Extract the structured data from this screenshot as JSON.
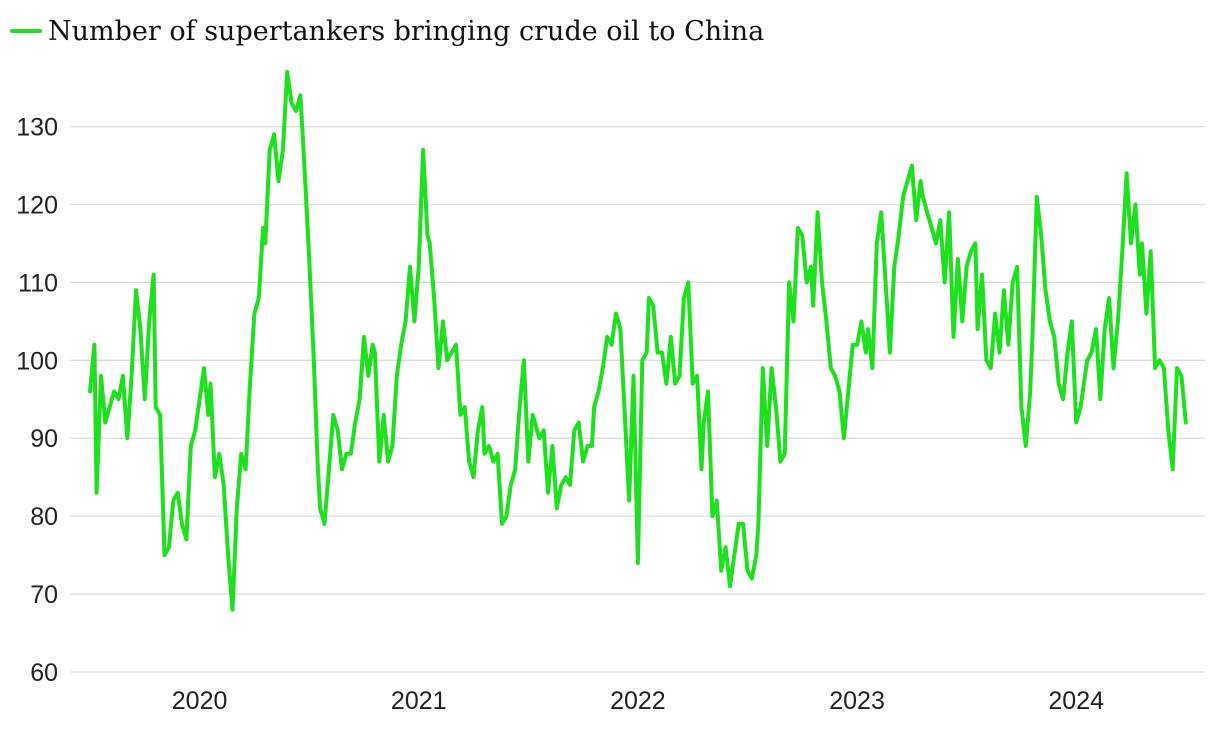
{
  "chart_data": {
    "type": "line",
    "title": "",
    "xlabel": "",
    "ylabel": "",
    "ylim": [
      60,
      137
    ],
    "yticks": [
      60,
      70,
      80,
      90,
      100,
      110,
      120,
      130
    ],
    "xticks": [
      "2020",
      "2021",
      "2022",
      "2023",
      "2024"
    ],
    "xlim": [
      2019.58,
      2024.59
    ],
    "grid": true,
    "legend": "top-left",
    "series": [
      {
        "name": "Number of supertankers bringing crude oil to China",
        "color": "#1ee01e",
        "x": [
          2019.58,
          2019.6,
          2019.61,
          2019.63,
          2019.65,
          2019.67,
          2019.69,
          2019.71,
          2019.73,
          2019.75,
          2019.77,
          2019.79,
          2019.81,
          2019.83,
          2019.85,
          2019.87,
          2019.88,
          2019.9,
          2019.92,
          2019.94,
          2019.96,
          2019.98,
          2020.0,
          2020.02,
          2020.04,
          2020.06,
          2020.08,
          2020.1,
          2020.12,
          2020.13,
          2020.15,
          2020.17,
          2020.19,
          2020.21,
          2020.23,
          2020.25,
          2020.27,
          2020.29,
          2020.31,
          2020.33,
          2020.35,
          2020.37,
          2020.38,
          2020.4,
          2020.42,
          2020.44,
          2020.46,
          2020.48,
          2020.5,
          2020.52,
          2020.54,
          2020.56,
          2020.58,
          2020.6,
          2020.62,
          2020.63,
          2020.65,
          2020.67,
          2020.69,
          2020.71,
          2020.73,
          2020.75,
          2020.77,
          2020.79,
          2020.81,
          2020.83,
          2020.85,
          2020.87,
          2020.88,
          2020.9,
          2020.92,
          2020.94,
          2020.96,
          2020.98,
          2021.0,
          2021.02,
          2021.04,
          2021.06,
          2021.08,
          2021.1,
          2021.12,
          2021.13,
          2021.15,
          2021.17,
          2021.19,
          2021.21,
          2021.23,
          2021.25,
          2021.27,
          2021.29,
          2021.31,
          2021.33,
          2021.35,
          2021.37,
          2021.38,
          2021.4,
          2021.42,
          2021.44,
          2021.46,
          2021.48,
          2021.5,
          2021.52,
          2021.54,
          2021.56,
          2021.58,
          2021.6,
          2021.62,
          2021.63,
          2021.65,
          2021.67,
          2021.69,
          2021.71,
          2021.73,
          2021.75,
          2021.77,
          2021.79,
          2021.81,
          2021.83,
          2021.85,
          2021.87,
          2021.88,
          2021.9,
          2021.92,
          2021.94,
          2021.96,
          2021.98,
          2022.0,
          2022.02,
          2022.04,
          2022.06,
          2022.08,
          2022.1,
          2022.12,
          2022.13,
          2022.15,
          2022.17,
          2022.19,
          2022.21,
          2022.23,
          2022.25,
          2022.27,
          2022.29,
          2022.31,
          2022.33,
          2022.35,
          2022.37,
          2022.38,
          2022.4,
          2022.42,
          2022.44,
          2022.46,
          2022.48,
          2022.5,
          2022.52,
          2022.54,
          2022.56,
          2022.58,
          2022.6,
          2022.62,
          2022.63,
          2022.65,
          2022.67,
          2022.69,
          2022.71,
          2022.73,
          2022.75,
          2022.77,
          2022.79,
          2022.81,
          2022.83,
          2022.85,
          2022.87,
          2022.88,
          2022.9,
          2022.92,
          2022.94,
          2022.96,
          2022.98,
          2023.0,
          2023.02,
          2023.04,
          2023.06,
          2023.08,
          2023.1,
          2023.12,
          2023.13,
          2023.15,
          2023.17,
          2023.19,
          2023.21,
          2023.23,
          2023.25,
          2023.27,
          2023.29,
          2023.31,
          2023.33,
          2023.35,
          2023.37,
          2023.38,
          2023.4,
          2023.42,
          2023.44,
          2023.46,
          2023.48,
          2023.5,
          2023.52,
          2023.54,
          2023.56,
          2023.58,
          2023.6,
          2023.62,
          2023.63,
          2023.65,
          2023.67,
          2023.69,
          2023.71,
          2023.73,
          2023.75,
          2023.77,
          2023.79,
          2023.81,
          2023.83,
          2023.85,
          2023.87,
          2023.88,
          2023.9,
          2023.92,
          2023.94,
          2023.96,
          2023.98,
          2024.0,
          2024.02,
          2024.04,
          2024.06,
          2024.08,
          2024.1,
          2024.12,
          2024.13,
          2024.15,
          2024.17,
          2024.19,
          2024.21,
          2024.23,
          2024.25,
          2024.27,
          2024.29,
          2024.31,
          2024.33,
          2024.35,
          2024.37,
          2024.38,
          2024.4,
          2024.42,
          2024.44,
          2024.46,
          2024.48,
          2024.5,
          2024.52,
          2024.54,
          2024.56,
          2024.58
        ],
        "values": [
          96,
          102,
          83,
          98,
          92,
          94,
          96,
          95,
          98,
          90,
          98,
          109,
          104,
          95,
          105,
          111,
          94,
          93,
          75,
          76,
          82,
          83,
          79,
          77,
          89,
          91,
          95,
          99,
          93,
          97,
          85,
          88,
          84,
          75,
          68,
          81,
          88,
          86,
          97,
          106,
          108,
          117,
          115,
          127,
          129,
          123,
          127,
          137,
          133,
          132,
          134,
          124,
          113,
          101,
          86,
          81,
          79,
          86,
          93,
          91,
          86,
          88,
          88,
          92,
          95,
          103,
          98,
          102,
          101,
          87,
          93,
          87,
          89,
          98,
          102,
          105,
          112,
          105,
          112,
          127,
          116,
          115,
          108,
          99,
          105,
          100,
          101,
          102,
          93,
          94,
          87,
          85,
          91,
          94,
          88,
          89,
          87,
          88,
          79,
          80,
          84,
          86,
          94,
          100,
          87,
          93,
          91,
          90,
          91,
          83,
          89,
          81,
          84,
          85,
          84,
          91,
          92,
          87,
          89,
          89,
          94,
          96,
          99,
          103,
          102,
          106,
          104,
          93,
          82,
          98,
          74,
          100,
          101,
          108,
          107,
          101,
          101,
          97,
          103,
          97,
          98,
          108,
          110,
          97,
          98,
          86,
          92,
          96,
          80,
          82,
          73,
          76,
          71,
          75,
          79,
          79,
          73,
          72,
          75,
          79,
          99,
          89,
          99,
          94,
          87,
          88,
          110,
          105,
          117,
          116,
          110,
          112,
          107,
          119,
          110,
          105,
          99,
          98,
          96,
          90,
          96,
          102,
          102,
          105,
          101,
          104,
          99,
          115,
          119,
          110,
          101,
          112,
          116,
          121,
          123,
          125,
          118,
          123,
          121,
          119,
          117,
          115,
          118,
          110,
          119,
          103,
          113,
          105,
          112,
          114,
          115,
          104,
          111,
          100,
          99,
          106,
          101,
          109,
          102,
          110,
          112,
          94,
          89,
          96,
          103,
          121,
          116,
          109,
          105,
          103,
          97,
          95,
          101,
          105,
          92,
          94,
          98,
          100,
          101,
          104,
          95,
          104,
          108,
          99,
          105,
          114,
          124,
          115,
          120,
          111,
          115,
          106,
          114,
          99,
          100,
          99,
          91,
          86,
          99,
          98,
          92
        ]
      }
    ]
  }
}
